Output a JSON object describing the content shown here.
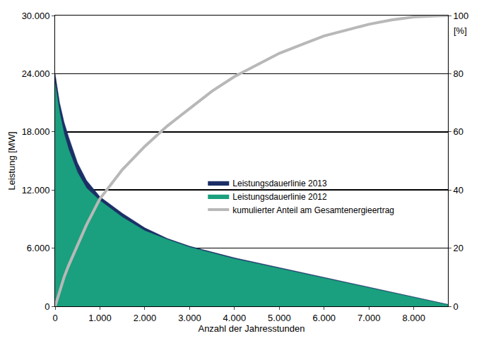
{
  "chart_data": {
    "type": "area",
    "xlabel": "Anzahl der Jahresstunden",
    "ylabel": "Leistung [MW]",
    "y2label": "[%]",
    "x": [
      0,
      100,
      200,
      300,
      500,
      700,
      1000,
      1500,
      2000,
      2500,
      3000,
      3500,
      4000,
      4500,
      5000,
      5500,
      6000,
      6500,
      7000,
      7500,
      8000,
      8500,
      8760
    ],
    "series": [
      {
        "name": "Leistungsdauerlinie 2013",
        "color": "#1b2f66",
        "type": "area",
        "values": [
          24000,
          21000,
          19000,
          17500,
          14800,
          13000,
          11300,
          9600,
          8100,
          7000,
          6200,
          5600,
          5000,
          4500,
          4000,
          3500,
          3000,
          2500,
          2000,
          1500,
          1000,
          500,
          200
        ]
      },
      {
        "name": "Leistungsdauerlinie 2012",
        "color": "#1aa07e",
        "type": "area",
        "values": [
          23000,
          20000,
          17800,
          16200,
          13800,
          12200,
          10900,
          9200,
          7800,
          6900,
          6100,
          5500,
          4900,
          4400,
          3900,
          3400,
          2900,
          2400,
          1900,
          1400,
          900,
          450,
          150
        ]
      },
      {
        "name": "kumulierter Anteil am Gesamtenergieertrag",
        "color": "#b8b8b8",
        "type": "line",
        "axis": "y2",
        "values": [
          0,
          5,
          10,
          14,
          21,
          28,
          37,
          47,
          55,
          62,
          68,
          74,
          79,
          83,
          87,
          90,
          93,
          95,
          97,
          98.5,
          99.5,
          99.9,
          100
        ]
      }
    ],
    "xlim": [
      0,
      8760
    ],
    "xticks": [
      0,
      {
        "value": 1000,
        "label": "1.000"
      },
      {
        "value": 2000,
        "label": "2.000"
      },
      {
        "value": 3000,
        "label": "3.000"
      },
      {
        "value": 4000,
        "label": "4.000"
      },
      {
        "value": 5000,
        "label": "5.000"
      },
      {
        "value": 6000,
        "label": "6.000"
      },
      {
        "value": 7000,
        "label": "7.000"
      },
      {
        "value": 8000,
        "label": "8.000"
      }
    ],
    "ylim": [
      0,
      30000
    ],
    "yticks": [
      0,
      {
        "value": 6000,
        "label": "6.000"
      },
      {
        "value": 12000,
        "label": "12.000"
      },
      {
        "value": 18000,
        "label": "18.000"
      },
      {
        "value": 24000,
        "label": "24.000"
      },
      {
        "value": 30000,
        "label": "30.000"
      }
    ],
    "y2lim": [
      0,
      100
    ],
    "y2ticks": [
      0,
      20,
      40,
      60,
      80,
      100
    ],
    "grid": true,
    "legend": "center"
  }
}
